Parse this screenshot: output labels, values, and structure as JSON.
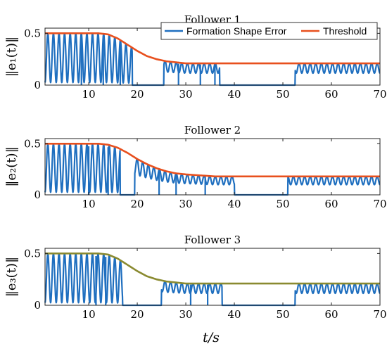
{
  "chart_data": [
    {
      "type": "line",
      "title": "Follower 1",
      "ylabel": "‖e₁(t)‖",
      "xlim": [
        1,
        70
      ],
      "ylim": [
        0,
        0.55
      ],
      "xticks": [
        "10",
        "20",
        "30",
        "40",
        "50",
        "60",
        "70"
      ],
      "yticks": [
        "0",
        "0.5"
      ],
      "legend": {
        "position": "top-right",
        "entries": [
          "Formation Shape Error",
          "Threshold"
        ]
      },
      "threshold": {
        "name": "Threshold",
        "color": "#e8501e",
        "x": [
          1,
          12,
          14,
          16,
          18,
          20,
          22,
          24,
          26,
          28,
          30,
          70
        ],
        "values": [
          0.5,
          0.5,
          0.49,
          0.45,
          0.39,
          0.33,
          0.28,
          0.25,
          0.23,
          0.22,
          0.21,
          0.21
        ]
      },
      "error": {
        "name": "Formation Shape Error",
        "color": "#1f6fbf",
        "oscillation_until": 19,
        "zero_intervals": [
          [
            19,
            25.5
          ],
          [
            37,
            52.5
          ]
        ],
        "drop_times": [
          8.5,
          13,
          16.5,
          28.5,
          33,
          36
        ]
      }
    },
    {
      "type": "line",
      "title": "Follower 2",
      "ylabel": "‖e₂(t)‖",
      "xlim": [
        1,
        70
      ],
      "ylim": [
        0,
        0.55
      ],
      "xticks": [
        "10",
        "20",
        "30",
        "40",
        "50",
        "60",
        "70"
      ],
      "yticks": [
        "0",
        "0.5"
      ],
      "threshold": {
        "name": "Threshold",
        "color": "#e8501e",
        "x": [
          1,
          12,
          14,
          16,
          18,
          20,
          22,
          24,
          26,
          28,
          30,
          33,
          36,
          70
        ],
        "values": [
          0.5,
          0.5,
          0.49,
          0.46,
          0.41,
          0.35,
          0.3,
          0.26,
          0.23,
          0.21,
          0.2,
          0.19,
          0.18,
          0.18
        ]
      },
      "error": {
        "name": "Formation Shape Error",
        "color": "#1f6fbf",
        "oscillation_until": 16.5,
        "zero_intervals": [
          [
            16.5,
            19.5
          ],
          [
            40,
            51
          ]
        ],
        "drop_times": [
          10,
          14,
          24.5,
          28,
          34
        ]
      }
    },
    {
      "type": "line",
      "title": "Follower 3",
      "ylabel": "‖e₃(t)‖",
      "xlabel": "t/s",
      "xlim": [
        1,
        70
      ],
      "ylim": [
        0,
        0.55
      ],
      "xticks": [
        "10",
        "20",
        "30",
        "40",
        "50",
        "60",
        "70"
      ],
      "yticks": [
        "0",
        "0.5"
      ],
      "threshold": {
        "name": "Threshold",
        "color": "#8a8a30",
        "x": [
          1,
          12,
          14,
          16,
          18,
          20,
          22,
          24,
          26,
          28,
          30,
          70
        ],
        "values": [
          0.5,
          0.5,
          0.49,
          0.45,
          0.39,
          0.33,
          0.28,
          0.25,
          0.23,
          0.22,
          0.21,
          0.21
        ]
      },
      "error": {
        "name": "Formation Shape Error",
        "color": "#1f6fbf",
        "oscillation_until": 17,
        "zero_intervals": [
          [
            17,
            25
          ],
          [
            37.5,
            52.5
          ]
        ],
        "drop_times": [
          11.5,
          13.5,
          31,
          34.5
        ]
      }
    }
  ]
}
